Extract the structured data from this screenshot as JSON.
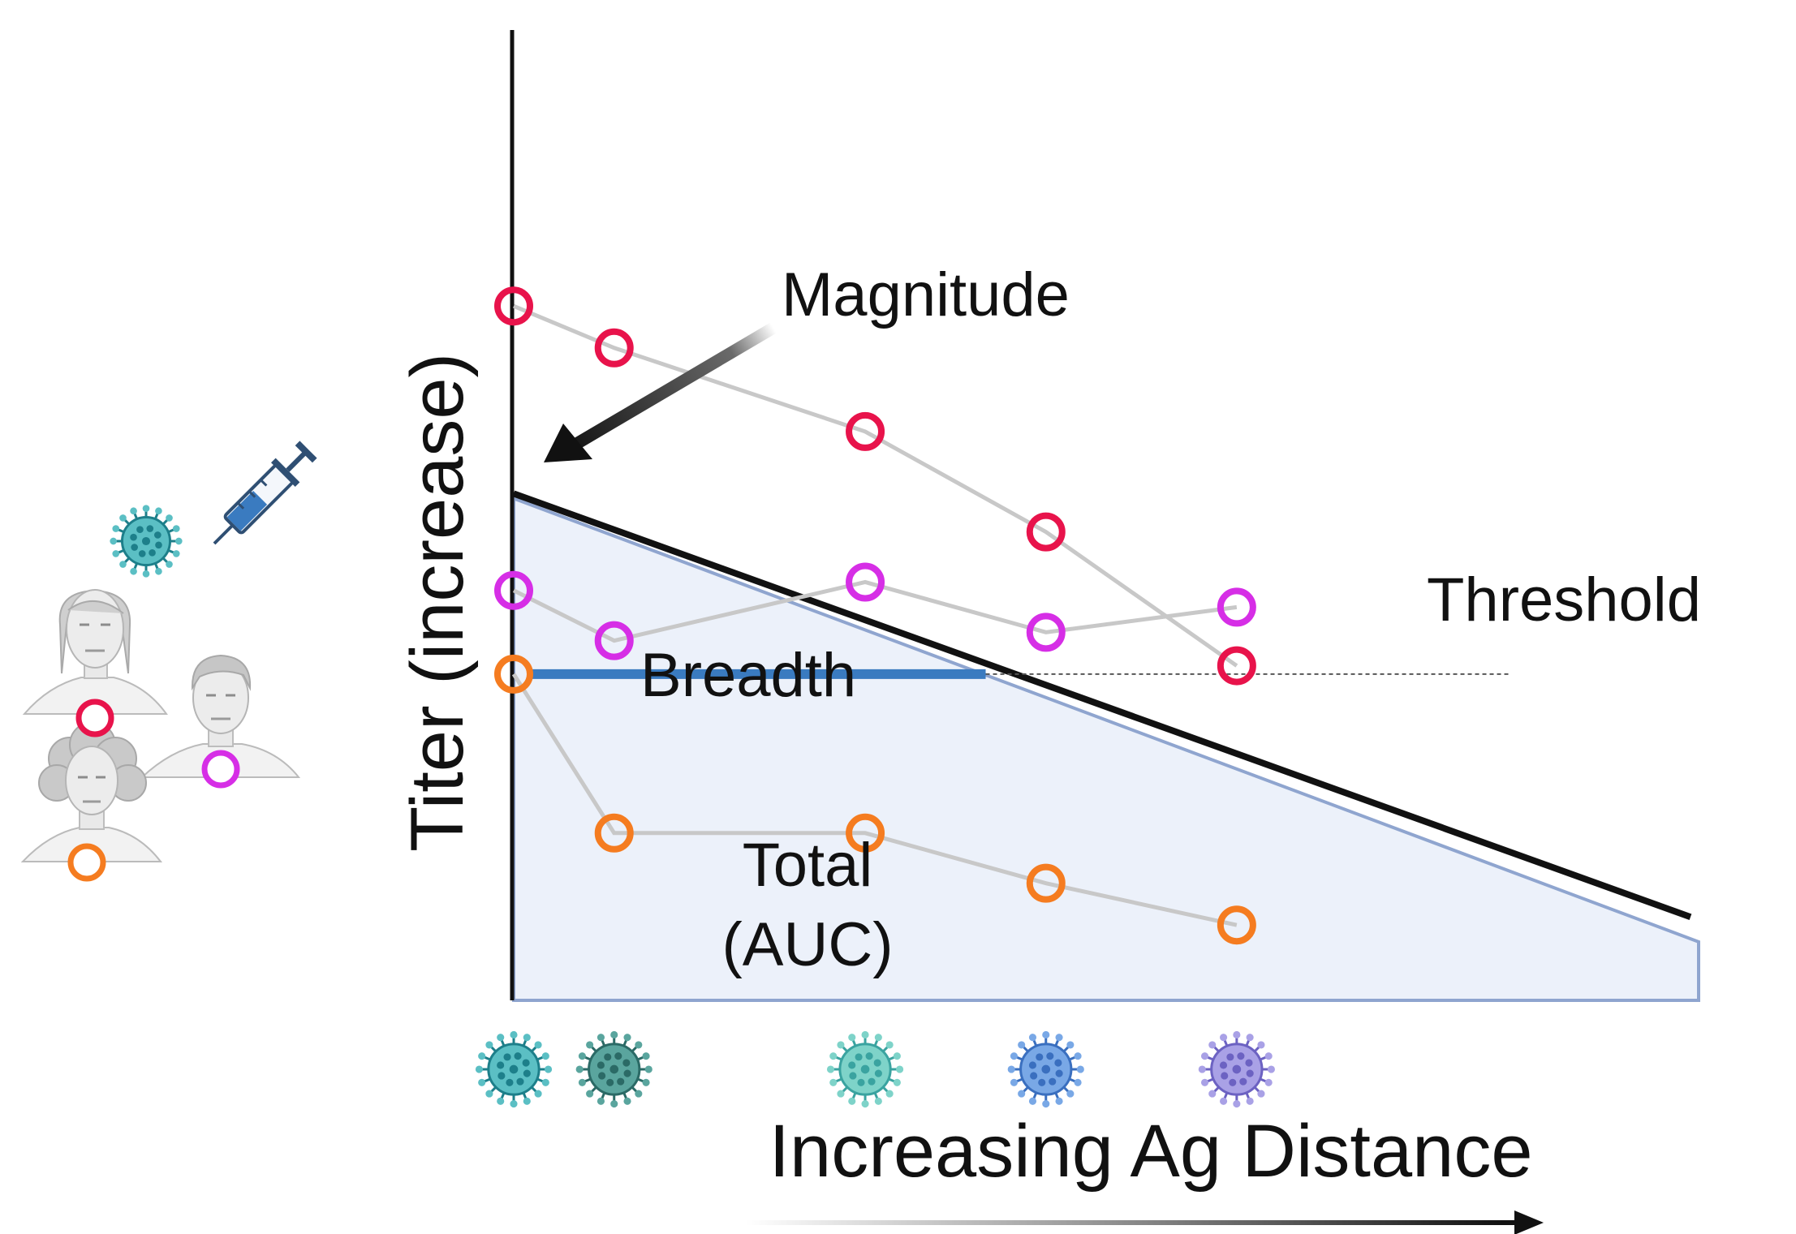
{
  "labels": {
    "magnitude": "Magnitude",
    "threshold": "Threshold",
    "breadth": "Breadth",
    "total_line1": "Total",
    "total_line2": "(AUC)",
    "y_axis": "Titer  (increase)",
    "x_axis": "Increasing Ag Distance"
  },
  "colors": {
    "red": "#e8134b",
    "magenta": "#d62ee6",
    "orange": "#f57c20",
    "connector": "#c8c8c8",
    "area_fill": "#ecf1fa",
    "area_stroke": "#8fa5cf",
    "breadth_bar": "#3a7bc0",
    "axis": "#111111"
  },
  "icons": {
    "vaccine": "syringe-icon",
    "vaccine_virus": "virus-icon",
    "people": [
      "woman-portrait-icon",
      "man-portrait-icon",
      "curly-hair-woman-portrait-icon"
    ],
    "x_axis_viruses": [
      "virus-icon",
      "virus-icon",
      "virus-icon",
      "virus-icon",
      "virus-icon"
    ]
  },
  "chart_data": {
    "type": "line",
    "title": "",
    "xlabel": "Increasing Ag Distance",
    "ylabel": "Titer  (increase)",
    "threshold_label": "Threshold",
    "x": [
      0,
      1,
      3.5,
      5.3,
      7.2
    ],
    "series": [
      {
        "color": "#e8134b",
        "points": [
          [
            0,
            8.3
          ],
          [
            1,
            7.8
          ],
          [
            3.5,
            6.8
          ],
          [
            5.3,
            5.6
          ],
          [
            7.2,
            4.0
          ]
        ]
      },
      {
        "color": "#d62ee6",
        "points": [
          [
            0,
            4.9
          ],
          [
            1,
            4.3
          ],
          [
            3.5,
            5.0
          ],
          [
            5.3,
            4.4
          ],
          [
            7.2,
            4.7
          ]
        ]
      },
      {
        "color": "#f57c20",
        "points": [
          [
            0,
            3.9
          ],
          [
            1,
            2.0
          ],
          [
            3.5,
            2.0
          ],
          [
            5.3,
            1.4
          ],
          [
            7.2,
            0.9
          ]
        ]
      }
    ],
    "threshold": 3.9,
    "magnitude_line": [
      [
        0,
        6.0
      ],
      [
        11.8,
        0.9
      ]
    ],
    "area_polygon": [
      [
        0,
        6.0
      ],
      [
        11.8,
        0.7
      ],
      [
        11.8,
        0
      ],
      [
        0,
        0
      ]
    ],
    "breadth_segment": [
      [
        0,
        3.9
      ],
      [
        4.7,
        3.9
      ]
    ],
    "xlim": [
      0,
      11.8
    ],
    "ylim": [
      0,
      11.6
    ]
  }
}
